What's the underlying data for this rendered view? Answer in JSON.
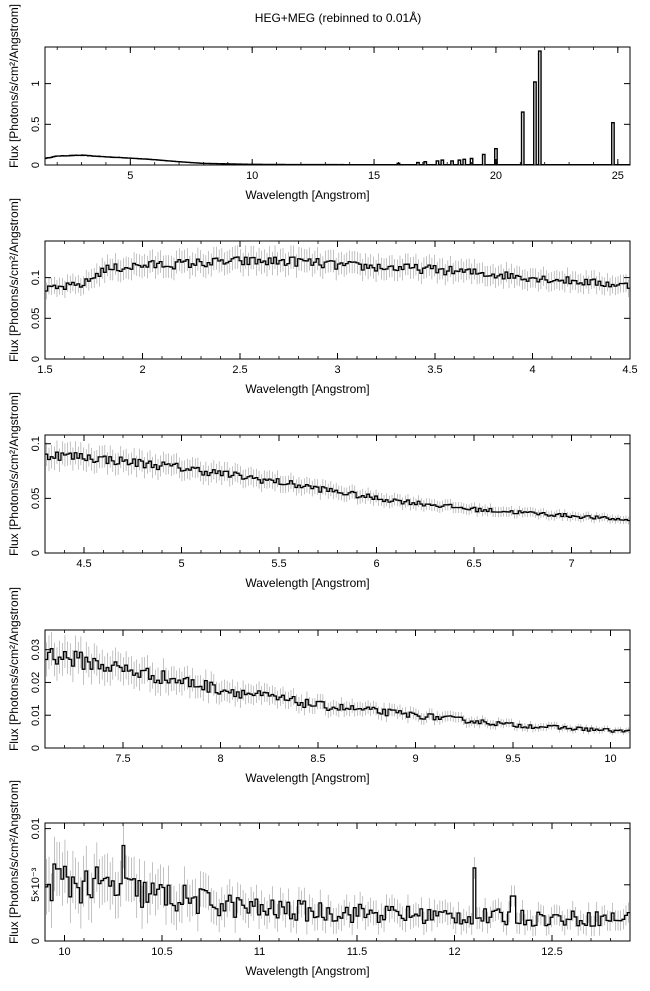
{
  "figure": {
    "title": "HEG+MEG (rebinned to 0.01Å)",
    "colors": {
      "line": "#000000",
      "error": "#9a9a9a",
      "frame": "#000000"
    }
  },
  "chart_data": [
    {
      "type": "line",
      "title": "HEG+MEG (rebinned to 0.01Å)",
      "xlabel": "Wavelength [Angstrom]",
      "ylabel": "Flux [Photons/s/cm²/Angstrom]",
      "xlim": [
        1.5,
        25.5
      ],
      "ylim": [
        0,
        1.45
      ],
      "xticks": [
        5,
        10,
        15,
        20,
        25
      ],
      "xtick_labels": [
        "5",
        "10",
        "15",
        "20",
        "25"
      ],
      "yticks": [
        0,
        0.5,
        1
      ],
      "ytick_labels": [
        "0",
        "0.5",
        "1"
      ],
      "continuum": {
        "x": [
          1.5,
          2,
          3,
          4,
          5,
          6,
          7,
          8,
          10,
          12,
          15,
          20,
          25.5
        ],
        "y": [
          0.08,
          0.11,
          0.12,
          0.1,
          0.085,
          0.065,
          0.04,
          0.02,
          0.008,
          0.005,
          0.004,
          0.003,
          0.003
        ]
      },
      "lines": {
        "x": [
          16.0,
          16.8,
          17.1,
          17.6,
          17.8,
          18.2,
          18.5,
          18.7,
          19.0,
          19.5,
          20.0,
          21.1,
          21.6,
          21.8,
          24.8
        ],
        "y": [
          0.02,
          0.03,
          0.04,
          0.05,
          0.06,
          0.05,
          0.06,
          0.07,
          0.08,
          0.13,
          0.2,
          0.65,
          1.02,
          1.4,
          0.52
        ]
      },
      "error_fraction": 0.1,
      "noise": 0.02
    },
    {
      "type": "line",
      "xlabel": "Wavelength [Angstrom]",
      "ylabel": "Flux [Photons/s/cm²/Angstrom]",
      "xlim": [
        1.5,
        4.5
      ],
      "ylim": [
        0,
        0.145
      ],
      "xticks": [
        1.5,
        2,
        2.5,
        3,
        3.5,
        4,
        4.5
      ],
      "xtick_labels": [
        "1.5",
        "2",
        "2.5",
        "3",
        "3.5",
        "4",
        "4.5"
      ],
      "yticks": [
        0,
        0.05,
        0.1
      ],
      "ytick_labels": [
        "0",
        "0.05",
        "0.1"
      ],
      "continuum": {
        "x": [
          1.5,
          1.7,
          1.8,
          2.0,
          2.5,
          2.8,
          3.0,
          3.5,
          4.0,
          4.5
        ],
        "y": [
          0.085,
          0.092,
          0.11,
          0.115,
          0.12,
          0.12,
          0.115,
          0.11,
          0.1,
          0.09
        ]
      },
      "error_fraction": 0.12,
      "noise": 0.05
    },
    {
      "type": "line",
      "xlabel": "Wavelength [Angstrom]",
      "ylabel": "Flux [Photons/s/cm²/Angstrom]",
      "xlim": [
        4.3,
        7.3
      ],
      "ylim": [
        0,
        0.108
      ],
      "xticks": [
        4.5,
        5,
        5.5,
        6,
        6.5,
        7
      ],
      "xtick_labels": [
        "4.5",
        "5",
        "5.5",
        "6",
        "6.5",
        "7"
      ],
      "yticks": [
        0,
        0.05,
        0.1
      ],
      "ytick_labels": [
        "0",
        "0.05",
        "0.1"
      ],
      "continuum": {
        "x": [
          4.3,
          4.5,
          5.0,
          5.5,
          6.0,
          6.5,
          7.0,
          7.3
        ],
        "y": [
          0.09,
          0.088,
          0.078,
          0.065,
          0.05,
          0.04,
          0.034,
          0.03
        ]
      },
      "error_fraction": 0.12,
      "noise": 0.05
    },
    {
      "type": "line",
      "xlabel": "Wavelength [Angstrom]",
      "ylabel": "Flux [Photons/s/cm²/Angstrom]",
      "xlim": [
        7.1,
        10.1
      ],
      "ylim": [
        0,
        0.036
      ],
      "xticks": [
        7.5,
        8,
        8.5,
        9,
        9.5,
        10
      ],
      "xtick_labels": [
        "7.5",
        "8",
        "8.5",
        "9",
        "9.5",
        "10"
      ],
      "yticks": [
        0,
        0.01,
        0.02,
        0.03
      ],
      "ytick_labels": [
        "0",
        "0.01",
        "0.02",
        "0.03"
      ],
      "continuum": {
        "x": [
          7.1,
          7.5,
          8.0,
          8.5,
          9.0,
          9.5,
          10.1
        ],
        "y": [
          0.029,
          0.024,
          0.018,
          0.013,
          0.01,
          0.007,
          0.005
        ]
      },
      "error_fraction": 0.18,
      "noise": 0.1
    },
    {
      "type": "line",
      "xlabel": "Wavelength [Angstrom]",
      "ylabel": "Flux [Photons/s/cm²/Angstrom]",
      "xlim": [
        9.9,
        12.9
      ],
      "ylim": [
        0,
        0.0105
      ],
      "xticks": [
        10,
        10.5,
        11,
        11.5,
        12,
        12.5
      ],
      "xtick_labels": [
        "10",
        "10.5",
        "11",
        "11.5",
        "12",
        "12.5"
      ],
      "yticks": [
        0,
        0.005,
        0.01
      ],
      "ytick_labels": [
        "0",
        "5×10⁻³",
        "0.01"
      ],
      "continuum": {
        "x": [
          9.9,
          10.2,
          10.5,
          11.0,
          11.5,
          12.0,
          12.5,
          12.9
        ],
        "y": [
          0.0055,
          0.0048,
          0.004,
          0.0028,
          0.0025,
          0.0022,
          0.002,
          0.002
        ]
      },
      "lines": {
        "x": [
          10.3,
          12.1,
          12.3
        ],
        "y": [
          0.0085,
          0.0065,
          0.004
        ]
      },
      "error_fraction": 0.45,
      "noise": 0.35
    }
  ]
}
